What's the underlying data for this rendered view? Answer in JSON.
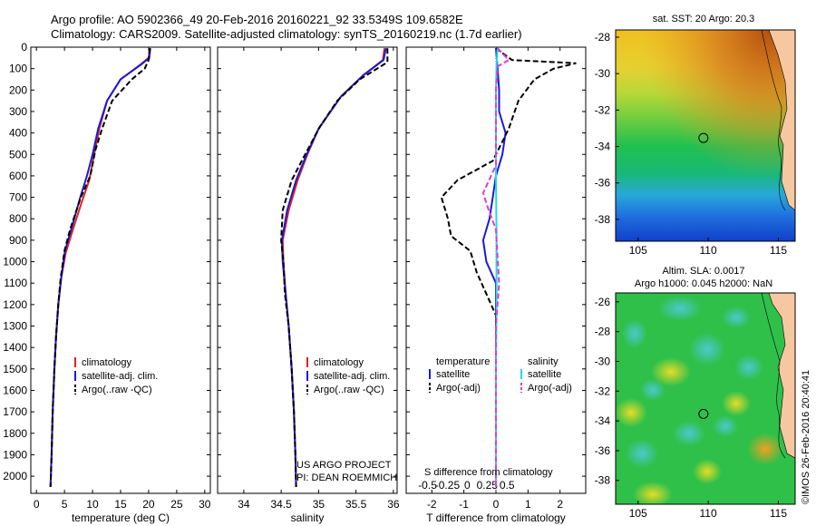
{
  "header": {
    "line1": "Argo profile: AO 5902366_49 20-Feb-2016 20160221_92 33.5349S 109.6582E",
    "line2": "Climatology: CARS2009. Satellite-adjusted climatology: synTS_20160219.nc (1.7d earlier)"
  },
  "colors": {
    "climatology": "#e8201c",
    "satellite": "#1a1adb",
    "argo": "#000000",
    "sat_sal": "#22d8e8",
    "argo_sal": "#e23ad6"
  },
  "chart_data": [
    {
      "type": "line",
      "name": "temperature",
      "xlabel": "temperature (deg C)",
      "ylabel": "",
      "xlim": [
        -1,
        31
      ],
      "ylim": [
        2080,
        0
      ],
      "xticks": [
        0,
        5,
        10,
        15,
        20,
        25,
        30
      ],
      "yticks": [
        0,
        100,
        200,
        300,
        400,
        500,
        600,
        700,
        800,
        900,
        1000,
        1100,
        1200,
        1300,
        1400,
        1500,
        1600,
        1700,
        1800,
        1900,
        2000
      ],
      "legend": [
        "climatology",
        "satellite-adj. clim.",
        "Argo(..raw -QC)"
      ],
      "series": [
        {
          "name": "climatology",
          "style": "solid",
          "points": [
            [
              20.2,
              5
            ],
            [
              20.0,
              50
            ],
            [
              18.6,
              80
            ],
            [
              15.0,
              150
            ],
            [
              12.6,
              250
            ],
            [
              11.2,
              380
            ],
            [
              10.3,
              500
            ],
            [
              9.4,
              620
            ],
            [
              8.1,
              720
            ],
            [
              6.5,
              850
            ],
            [
              5.2,
              960
            ],
            [
              4.4,
              1080
            ],
            [
              3.9,
              1200
            ],
            [
              3.5,
              1350
            ],
            [
              3.2,
              1500
            ],
            [
              2.9,
              1700
            ],
            [
              2.7,
              1900
            ],
            [
              2.5,
              2050
            ]
          ]
        },
        {
          "name": "satellite-adj. clim.",
          "style": "solid",
          "points": [
            [
              20.3,
              5
            ],
            [
              20.1,
              50
            ],
            [
              18.7,
              80
            ],
            [
              15.0,
              150
            ],
            [
              12.6,
              250
            ],
            [
              11.0,
              380
            ],
            [
              10.0,
              500
            ],
            [
              9.0,
              600
            ],
            [
              7.8,
              700
            ],
            [
              6.4,
              830
            ],
            [
              5.1,
              950
            ],
            [
              4.4,
              1080
            ],
            [
              3.9,
              1200
            ],
            [
              3.5,
              1350
            ],
            [
              3.2,
              1500
            ],
            [
              2.9,
              1700
            ],
            [
              2.7,
              1900
            ],
            [
              2.5,
              2050
            ]
          ]
        },
        {
          "name": "Argo(..raw -QC)",
          "style": "dash",
          "points": [
            [
              20.2,
              5
            ],
            [
              20.0,
              60
            ],
            [
              19.3,
              100
            ],
            [
              17.0,
              150
            ],
            [
              13.5,
              250
            ],
            [
              11.7,
              380
            ],
            [
              10.5,
              480
            ],
            [
              9.6,
              600
            ],
            [
              7.9,
              700
            ],
            [
              6.0,
              850
            ],
            [
              5.0,
              950
            ],
            [
              4.3,
              1080
            ],
            [
              3.9,
              1200
            ],
            [
              3.5,
              1350
            ],
            [
              3.2,
              1500
            ],
            [
              2.9,
              1700
            ],
            [
              2.7,
              1900
            ],
            [
              2.5,
              2050
            ]
          ]
        }
      ]
    },
    {
      "type": "line",
      "name": "salinity",
      "xlabel": "salinity",
      "ylabel": "",
      "xlim": [
        33.65,
        36.05
      ],
      "ylim": [
        2080,
        0
      ],
      "xticks": [
        34,
        34.5,
        35,
        35.5,
        36
      ],
      "xticklabels": [
        "34",
        "34.5",
        "35",
        "35.5",
        "36"
      ],
      "legend": [
        "climatology",
        "satellite-adj. clim.",
        "Argo(..raw -QC)"
      ],
      "annotation": [
        "US ARGO PROJECT",
        "PI: DEAN ROEMMICH"
      ],
      "series": [
        {
          "name": "climatology",
          "style": "solid",
          "points": [
            [
              35.88,
              5
            ],
            [
              35.86,
              60
            ],
            [
              35.6,
              130
            ],
            [
              35.3,
              230
            ],
            [
              35.0,
              380
            ],
            [
              34.85,
              500
            ],
            [
              34.72,
              620
            ],
            [
              34.6,
              760
            ],
            [
              34.52,
              900
            ],
            [
              34.53,
              1000
            ],
            [
              34.56,
              1150
            ],
            [
              34.6,
              1300
            ],
            [
              34.64,
              1500
            ],
            [
              34.67,
              1700
            ],
            [
              34.69,
              1900
            ],
            [
              34.7,
              2050
            ]
          ]
        },
        {
          "name": "satellite-adj. clim.",
          "style": "solid",
          "points": [
            [
              35.9,
              5
            ],
            [
              35.87,
              60
            ],
            [
              35.6,
              130
            ],
            [
              35.3,
              230
            ],
            [
              35.0,
              380
            ],
            [
              34.84,
              500
            ],
            [
              34.7,
              620
            ],
            [
              34.58,
              760
            ],
            [
              34.51,
              900
            ],
            [
              34.52,
              1000
            ],
            [
              34.56,
              1150
            ],
            [
              34.6,
              1300
            ],
            [
              34.64,
              1500
            ],
            [
              34.67,
              1700
            ],
            [
              34.69,
              1900
            ],
            [
              34.7,
              2050
            ]
          ]
        },
        {
          "name": "Argo(..raw -QC)",
          "style": "dash",
          "points": [
            [
              35.92,
              5
            ],
            [
              35.92,
              70
            ],
            [
              35.55,
              150
            ],
            [
              35.25,
              250
            ],
            [
              35.02,
              370
            ],
            [
              34.82,
              500
            ],
            [
              34.64,
              620
            ],
            [
              34.52,
              760
            ],
            [
              34.5,
              900
            ],
            [
              34.53,
              1000
            ],
            [
              34.55,
              1150
            ],
            [
              34.6,
              1300
            ],
            [
              34.64,
              1500
            ],
            [
              34.67,
              1700
            ],
            [
              34.69,
              1900
            ],
            [
              34.7,
              2050
            ]
          ]
        }
      ]
    },
    {
      "type": "line",
      "name": "difference",
      "xlabel": "T difference from climatology",
      "xlabel_top": "S difference from climatology",
      "xlim": [
        -2.8,
        2.8
      ],
      "ylim": [
        2080,
        0
      ],
      "xticks": [
        -2,
        -1,
        0,
        1,
        2
      ],
      "xticklabels": [
        "-2",
        "-1",
        "0",
        "1",
        "2"
      ],
      "sticks": [
        -0.5,
        -0.25,
        0,
        0.25,
        0.5
      ],
      "sticklabels": [
        "-0.5",
        "-0.25",
        "0",
        "0.25",
        "0.5"
      ],
      "legend_headers": [
        "temperature",
        "salinity"
      ],
      "legend": [
        "satellite",
        "Argo(-adj)",
        "satellite",
        "Argo(-adj)"
      ],
      "series": [
        {
          "name": "T satellite",
          "style": "solid",
          "points": [
            [
              0,
              5
            ],
            [
              0.05,
              100
            ],
            [
              0.1,
              200
            ],
            [
              0.1,
              300
            ],
            [
              0.3,
              400
            ],
            [
              0.2,
              500
            ],
            [
              0,
              600
            ],
            [
              -0.1,
              700
            ],
            [
              -0.2,
              800
            ],
            [
              -0.4,
              900
            ],
            [
              -0.3,
              1000
            ],
            [
              0,
              1100
            ],
            [
              0,
              1200
            ],
            [
              0,
              1500
            ],
            [
              0,
              2050
            ]
          ]
        },
        {
          "name": "T Argo(-adj)",
          "style": "dash",
          "points": [
            [
              0,
              5
            ],
            [
              0.5,
              60
            ],
            [
              2.5,
              75
            ],
            [
              1.8,
              100
            ],
            [
              1.2,
              150
            ],
            [
              0.7,
              250
            ],
            [
              0.4,
              380
            ],
            [
              -0.1,
              530
            ],
            [
              -1.2,
              620
            ],
            [
              -1.7,
              700
            ],
            [
              -1.5,
              800
            ],
            [
              -1.4,
              880
            ],
            [
              -0.8,
              950
            ],
            [
              -0.6,
              1050
            ],
            [
              -0.3,
              1150
            ],
            [
              0,
              1250
            ],
            [
              0,
              1500
            ],
            [
              0,
              2050
            ]
          ]
        },
        {
          "name": "S satellite",
          "style": "solid",
          "points": [
            [
              0.05,
              5
            ],
            [
              0.02,
              80
            ],
            [
              0,
              200
            ],
            [
              0,
              600
            ],
            [
              0.02,
              900
            ],
            [
              0.02,
              1200
            ],
            [
              0,
              1500
            ],
            [
              0,
              2050
            ]
          ]
        },
        {
          "name": "S Argo(-adj)",
          "style": "dash",
          "points": [
            [
              0.05,
              5
            ],
            [
              0.4,
              60
            ],
            [
              0.05,
              90
            ],
            [
              0,
              200
            ],
            [
              0,
              550
            ],
            [
              -0.4,
              680
            ],
            [
              -0.25,
              750
            ],
            [
              0,
              850
            ],
            [
              0.1,
              1100
            ],
            [
              0,
              1300
            ],
            [
              0,
              2050
            ]
          ]
        }
      ]
    },
    {
      "type": "heatmap",
      "name": "sst-map",
      "title": "sat. SST: 20 Argo: 20.3",
      "xticks": [
        105,
        110,
        115
      ],
      "yticks": [
        -28,
        -30,
        -32,
        -34,
        -36,
        -38
      ],
      "xlim": [
        103.4,
        116.2
      ],
      "ylim": [
        -39.2,
        -27.6
      ],
      "float": [
        109.66,
        -33.53
      ]
    },
    {
      "type": "heatmap",
      "name": "sla-map",
      "title": [
        "Altim. SLA: 0.0017",
        "Argo h1000: 0.045 h2000: NaN"
      ],
      "xticks": [
        105,
        110,
        115
      ],
      "yticks": [
        -26,
        -28,
        -30,
        -32,
        -34,
        -36,
        -38
      ],
      "xlim": [
        103.4,
        116.2
      ],
      "ylim": [
        -39.6,
        -25.4
      ],
      "float": [
        109.66,
        -33.53
      ]
    }
  ],
  "footer": {
    "stamp": "©IMOS 26-Feb-2016 20:40:41"
  }
}
